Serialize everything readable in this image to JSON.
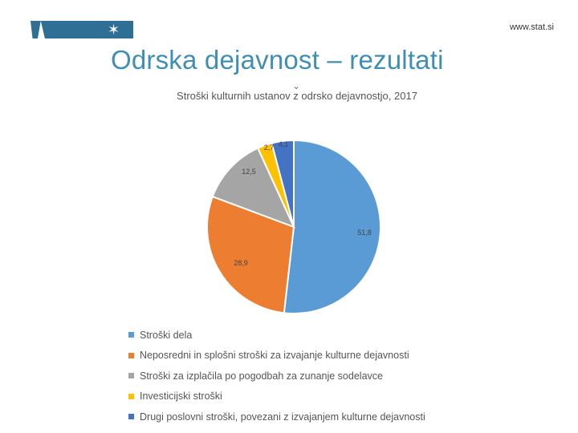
{
  "header": {
    "site_url": "www.stat.si",
    "logo_icon": "star-icon",
    "brand_color": "#2f6f95"
  },
  "slide": {
    "title": "Odrska dejavnost – rezultati"
  },
  "chart_data": {
    "type": "pie",
    "title": "Stroški kulturnih ustanov z odrsko dejavnostjo, 2017",
    "categories": [
      "Stroški dela",
      "Neposredni in splošni stroški za izvajanje kulturne dejavnosti",
      "Stroški za izplačila po pogodbah za zunanje sodelavce",
      "Investicijski stroški",
      "Drugi poslovni stroški, povezani z izvajanjem kulturne dejavnosti"
    ],
    "values": [
      51.8,
      28.9,
      12.5,
      2.7,
      4.1
    ],
    "value_labels": [
      "51,8",
      "28,9",
      "12,5",
      "2,7",
      "4,1"
    ],
    "colors": [
      "#5b9bd5",
      "#ed7d31",
      "#a5a5a5",
      "#ffc000",
      "#4472c4"
    ],
    "legend": "bottom"
  }
}
